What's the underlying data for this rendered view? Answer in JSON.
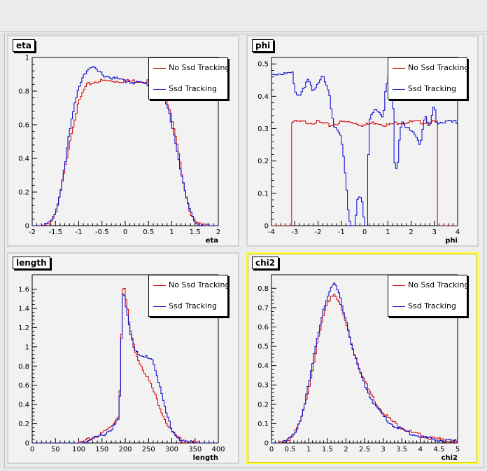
{
  "colors": {
    "series1": "#d40000",
    "series2": "#0000cc",
    "pad_bg": "#f2f2f2",
    "selected_border": "#ffff33"
  },
  "chart_data": [
    {
      "type": "line",
      "title": "eta",
      "xlabel": "eta",
      "ylabel": "",
      "xlim": [
        -2,
        2
      ],
      "ylim": [
        0,
        1
      ],
      "xticks": [
        "-2",
        "-1.5",
        "-1",
        "-0.5",
        "0",
        "0.5",
        "1",
        "1.5",
        "2"
      ],
      "xtick_values": [
        -2,
        -1.5,
        -1,
        -0.5,
        0,
        0.5,
        1,
        1.5,
        2
      ],
      "yticks": [
        "0",
        "0.2",
        "0.4",
        "0.6",
        "0.8",
        "1"
      ],
      "ytick_values": [
        0,
        0.2,
        0.4,
        0.6,
        0.8,
        1
      ],
      "legend_placement": "top-right",
      "series": [
        {
          "name": "No Ssd Tracking",
          "color": "#d40000",
          "x": [
            -2,
            -1.8,
            -1.6,
            -1.5,
            -1.4,
            -1.3,
            -1.2,
            -1.1,
            -1.0,
            -0.9,
            -0.8,
            -0.7,
            -0.6,
            -0.5,
            -0.3,
            0,
            0.3,
            0.5,
            0.6,
            0.7,
            0.8,
            0.9,
            1.0,
            1.1,
            1.2,
            1.3,
            1.4,
            1.5,
            1.6,
            1.8,
            2
          ],
          "y": [
            0,
            0,
            0.02,
            0.07,
            0.18,
            0.33,
            0.49,
            0.62,
            0.73,
            0.8,
            0.84,
            0.85,
            0.86,
            0.86,
            0.86,
            0.86,
            0.86,
            0.86,
            0.85,
            0.84,
            0.8,
            0.74,
            0.64,
            0.5,
            0.34,
            0.19,
            0.08,
            0.02,
            0.005,
            0,
            0
          ]
        },
        {
          "name": "Ssd Tracking",
          "color": "#0000cc",
          "x": [
            -2,
            -1.8,
            -1.6,
            -1.5,
            -1.4,
            -1.3,
            -1.2,
            -1.1,
            -1.0,
            -0.9,
            -0.8,
            -0.7,
            -0.6,
            -0.5,
            -0.3,
            0,
            0.3,
            0.5,
            0.6,
            0.7,
            0.8,
            0.9,
            1.0,
            1.1,
            1.2,
            1.3,
            1.4,
            1.5,
            1.6,
            1.8,
            2
          ],
          "y": [
            0,
            0,
            0.02,
            0.07,
            0.19,
            0.36,
            0.55,
            0.7,
            0.82,
            0.9,
            0.93,
            0.94,
            0.92,
            0.9,
            0.88,
            0.86,
            0.85,
            0.84,
            0.83,
            0.82,
            0.78,
            0.71,
            0.61,
            0.47,
            0.32,
            0.18,
            0.08,
            0.02,
            0.005,
            0,
            0
          ]
        }
      ]
    },
    {
      "type": "line",
      "title": "phi",
      "xlabel": "phi",
      "ylabel": "",
      "xlim": [
        -4,
        4
      ],
      "ylim": [
        0,
        0.52
      ],
      "xticks": [
        "-4",
        "-3",
        "-2",
        "-1",
        "0",
        "1",
        "2",
        "3",
        "4"
      ],
      "xtick_values": [
        -4,
        -3,
        -2,
        -1,
        0,
        1,
        2,
        3,
        4
      ],
      "yticks": [
        "0",
        "0.1",
        "0.2",
        "0.3",
        "0.4",
        "0.5"
      ],
      "ytick_values": [
        0,
        0.1,
        0.2,
        0.3,
        0.4,
        0.5
      ],
      "legend_placement": "top-right",
      "series": [
        {
          "name": "No Ssd Tracking",
          "color": "#d40000",
          "x": [
            -4,
            -3.16,
            -3.16,
            -2.5,
            -2,
            -1.5,
            -1,
            -0.5,
            0,
            0.5,
            1,
            1.5,
            2,
            2.5,
            3,
            3.16,
            3.16,
            4
          ],
          "y": [
            0,
            0,
            0.32,
            0.32,
            0.32,
            0.31,
            0.32,
            0.32,
            0.31,
            0.32,
            0.31,
            0.32,
            0.32,
            0.32,
            0.32,
            0.32,
            0,
            0
          ]
        },
        {
          "name": "Ssd Tracking",
          "color": "#0000cc",
          "x": [
            -3.1,
            -3.0,
            -2.8,
            -2.6,
            -2.4,
            -2.2,
            -2.0,
            -1.8,
            -1.6,
            -1.5,
            -1.4,
            -1.3,
            -1.2,
            -1.0,
            -0.9,
            -0.8,
            -0.7,
            -0.6,
            -0.5,
            -0.4,
            -0.3,
            -0.2,
            -0.1,
            0.0,
            0.1,
            0.2,
            0.4,
            0.6,
            0.8,
            0.9,
            1.0,
            1.1,
            1.2,
            1.3,
            1.4,
            1.5,
            1.6,
            1.8,
            2.0,
            2.2,
            2.4,
            2.6,
            2.8,
            3.0,
            3.1
          ],
          "y": [
            0.47,
            0.42,
            0.4,
            0.43,
            0.45,
            0.41,
            0.44,
            0.47,
            0.43,
            0.4,
            0.34,
            0.3,
            0.3,
            0.27,
            0.22,
            0.14,
            0.05,
            0.0,
            0.0,
            0.0,
            0.08,
            0.09,
            0.07,
            0.0,
            0.0,
            0.33,
            0.36,
            0.35,
            0.33,
            0.41,
            0.46,
            0.47,
            0.45,
            0.2,
            0.17,
            0.26,
            0.32,
            0.3,
            0.3,
            0.28,
            0.25,
            0.34,
            0.3,
            0.38,
            0.32
          ]
        }
      ]
    },
    {
      "type": "line",
      "title": "length",
      "xlabel": "length",
      "ylabel": "",
      "xlim": [
        0,
        400
      ],
      "ylim": [
        0,
        1.75
      ],
      "xticks": [
        "0",
        "50",
        "100",
        "150",
        "200",
        "250",
        "300",
        "350",
        "400"
      ],
      "xtick_values": [
        0,
        50,
        100,
        150,
        200,
        250,
        300,
        350,
        400
      ],
      "yticks": [
        "0",
        "0.2",
        "0.4",
        "0.6",
        "0.8",
        "1",
        "1.2",
        "1.4",
        "1.6"
      ],
      "ytick_values": [
        0,
        0.2,
        0.4,
        0.6,
        0.8,
        1,
        1.2,
        1.4,
        1.6
      ],
      "legend_placement": "top-right",
      "series": [
        {
          "name": "No Ssd Tracking",
          "color": "#d40000",
          "x": [
            0,
            100,
            110,
            130,
            150,
            170,
            185,
            190,
            193,
            196,
            200,
            210,
            220,
            230,
            240,
            250,
            260,
            270,
            280,
            290,
            300,
            310,
            320,
            330,
            340,
            360,
            400
          ],
          "y": [
            0,
            0,
            0.01,
            0.05,
            0.1,
            0.17,
            0.28,
            0.7,
            1.5,
            1.68,
            1.55,
            1.2,
            0.98,
            0.85,
            0.76,
            0.66,
            0.55,
            0.43,
            0.31,
            0.2,
            0.12,
            0.06,
            0.03,
            0.01,
            0.005,
            0,
            0
          ]
        },
        {
          "name": "Ssd Tracking",
          "color": "#0000cc",
          "x": [
            0,
            100,
            110,
            130,
            150,
            170,
            185,
            190,
            193,
            196,
            200,
            210,
            220,
            230,
            240,
            250,
            260,
            270,
            280,
            290,
            300,
            310,
            320,
            330,
            340,
            360,
            400
          ],
          "y": [
            0,
            0,
            0.01,
            0.04,
            0.08,
            0.14,
            0.24,
            0.6,
            1.45,
            1.58,
            1.48,
            1.18,
            0.98,
            0.9,
            0.89,
            0.9,
            0.86,
            0.68,
            0.46,
            0.28,
            0.15,
            0.07,
            0.03,
            0.01,
            0.005,
            0,
            0
          ]
        }
      ]
    },
    {
      "type": "line",
      "title": "chi2",
      "xlabel": "chi2",
      "ylabel": "",
      "xlim": [
        0,
        5
      ],
      "ylim": [
        0,
        0.87
      ],
      "xticks": [
        "0",
        "0.5",
        "1",
        "1.5",
        "2",
        "2.5",
        "3",
        "3.5",
        "4",
        "4.5",
        "5"
      ],
      "xtick_values": [
        0,
        0.5,
        1,
        1.5,
        2,
        2.5,
        3,
        3.5,
        4,
        4.5,
        5
      ],
      "yticks": [
        "0",
        "0.1",
        "0.2",
        "0.3",
        "0.4",
        "0.5",
        "0.6",
        "0.7",
        "0.8"
      ],
      "ytick_values": [
        0,
        0.1,
        0.2,
        0.3,
        0.4,
        0.5,
        0.6,
        0.7,
        0.8
      ],
      "legend_placement": "top-right",
      "series": [
        {
          "name": "No Ssd Tracking",
          "color": "#d40000",
          "x": [
            0,
            0.2,
            0.4,
            0.6,
            0.8,
            1.0,
            1.2,
            1.4,
            1.6,
            1.7,
            1.8,
            2.0,
            2.2,
            2.4,
            2.6,
            2.8,
            3.0,
            3.2,
            3.4,
            3.6,
            3.8,
            4.0,
            4.2,
            4.4,
            4.6,
            4.8,
            5
          ],
          "y": [
            0,
            0.0,
            0.01,
            0.04,
            0.12,
            0.28,
            0.48,
            0.66,
            0.76,
            0.77,
            0.74,
            0.62,
            0.48,
            0.37,
            0.28,
            0.21,
            0.16,
            0.12,
            0.09,
            0.07,
            0.05,
            0.04,
            0.03,
            0.02,
            0.015,
            0.01,
            0.005
          ]
        },
        {
          "name": "Ssd Tracking",
          "color": "#0000cc",
          "x": [
            0,
            0.2,
            0.4,
            0.6,
            0.8,
            1.0,
            1.2,
            1.4,
            1.6,
            1.7,
            1.8,
            2.0,
            2.2,
            2.4,
            2.6,
            2.8,
            3.0,
            3.2,
            3.4,
            3.6,
            3.8,
            4.0,
            4.2,
            4.4,
            4.6,
            4.8,
            5
          ],
          "y": [
            0,
            0.0,
            0.01,
            0.04,
            0.13,
            0.3,
            0.51,
            0.7,
            0.8,
            0.82,
            0.78,
            0.64,
            0.47,
            0.35,
            0.26,
            0.19,
            0.14,
            0.1,
            0.08,
            0.06,
            0.045,
            0.035,
            0.025,
            0.018,
            0.012,
            0.008,
            0.004
          ]
        }
      ]
    }
  ]
}
